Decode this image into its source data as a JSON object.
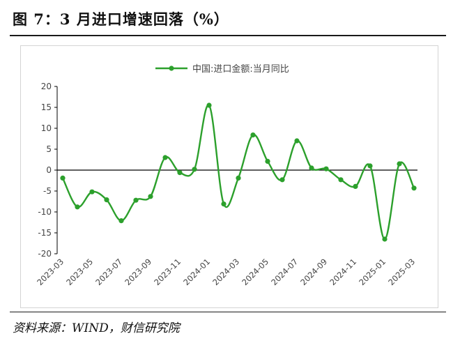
{
  "figure": {
    "title": "图 7：3 月进口增速回落（%）",
    "source": "资料来源：WIND，财信研究院"
  },
  "colors": {
    "series": "#2ca02c",
    "axis": "#000000",
    "text": "#444444",
    "frame": "#d4d4d4"
  },
  "chart_data": {
    "type": "line",
    "title": "",
    "xlabel": "",
    "ylabel": "",
    "ylim": [
      -20,
      20
    ],
    "yticks": [
      20,
      15,
      10,
      5,
      0,
      -5,
      -10,
      -15,
      -20
    ],
    "grid": false,
    "legend": "top-center",
    "x": [
      "2023-03",
      "2023-04",
      "2023-05",
      "2023-06",
      "2023-07",
      "2023-08",
      "2023-09",
      "2023-10",
      "2023-11",
      "2023-12",
      "2024-01",
      "2024-02",
      "2024-03",
      "2024-04",
      "2024-05",
      "2024-06",
      "2024-07",
      "2024-08",
      "2024-09",
      "2024-10",
      "2024-11",
      "2024-12",
      "2025-01",
      "2025-02",
      "2025-03"
    ],
    "xtick_labels": [
      "2023-03",
      "2023-05",
      "2023-07",
      "2023-09",
      "2023-11",
      "2024-01",
      "2024-03",
      "2024-05",
      "2024-07",
      "2024-09",
      "2024-11",
      "2025-01",
      "2025-03"
    ],
    "series": [
      {
        "name": "中国:进口金额:当月同比",
        "values": [
          -1.9,
          -8.8,
          -5.2,
          -7.1,
          -12.1,
          -7.2,
          -6.3,
          3.0,
          -0.6,
          0.2,
          15.5,
          -8.1,
          -1.9,
          8.4,
          2.1,
          -2.3,
          7.0,
          0.5,
          0.3,
          -2.3,
          -3.9,
          1.0,
          -16.5,
          1.5,
          -4.3
        ]
      }
    ]
  }
}
